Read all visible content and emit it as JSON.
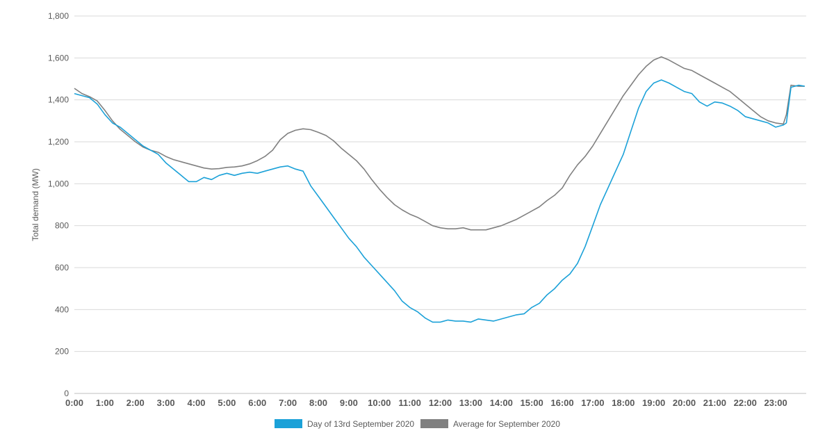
{
  "chart_data": {
    "type": "line",
    "title": "",
    "xlabel": "",
    "ylabel": "Total demand (MW)",
    "ylim": [
      0,
      1800
    ],
    "xlim": [
      0,
      24
    ],
    "yticks": [
      "0",
      "200",
      "400",
      "600",
      "800",
      "1,000",
      "1,200",
      "1,400",
      "1,600",
      "1,800"
    ],
    "yticks_values": [
      0,
      200,
      400,
      600,
      800,
      1000,
      1200,
      1400,
      1600,
      1800
    ],
    "xticks": [
      "0:00",
      "1:00",
      "2:00",
      "3:00",
      "4:00",
      "5:00",
      "6:00",
      "7:00",
      "8:00",
      "9:00",
      "10:00",
      "11:00",
      "12:00",
      "13:00",
      "14:00",
      "15:00",
      "16:00",
      "17:00",
      "18:00",
      "19:00",
      "20:00",
      "21:00",
      "22:00",
      "23:00"
    ],
    "xticks_values": [
      0,
      1,
      2,
      3,
      4,
      5,
      6,
      7,
      8,
      9,
      10,
      11,
      12,
      13,
      14,
      15,
      16,
      17,
      18,
      19,
      20,
      21,
      22,
      23
    ],
    "grid": true,
    "legend_position": "bottom",
    "series": [
      {
        "name": "Day of 13rd September 2020",
        "color": "#1ba1d8",
        "x": [
          0,
          0.25,
          0.5,
          0.75,
          1,
          1.25,
          1.5,
          1.75,
          2,
          2.25,
          2.5,
          2.75,
          3,
          3.25,
          3.5,
          3.75,
          4,
          4.25,
          4.5,
          4.75,
          5,
          5.25,
          5.5,
          5.75,
          6,
          6.25,
          6.5,
          6.75,
          7,
          7.25,
          7.5,
          7.75,
          8,
          8.25,
          8.5,
          8.75,
          9,
          9.25,
          9.5,
          9.75,
          10,
          10.25,
          10.5,
          10.75,
          11,
          11.25,
          11.5,
          11.75,
          12,
          12.25,
          12.5,
          12.75,
          13,
          13.25,
          13.5,
          13.75,
          14,
          14.25,
          14.5,
          14.75,
          15,
          15.25,
          15.5,
          15.75,
          16,
          16.25,
          16.5,
          16.75,
          17,
          17.25,
          17.5,
          17.75,
          18,
          18.25,
          18.5,
          18.75,
          19,
          19.25,
          19.5,
          19.75,
          20,
          20.25,
          20.5,
          20.75,
          21,
          21.25,
          21.5,
          21.75,
          22,
          22.25,
          22.5,
          22.75,
          23,
          23.25,
          23.35,
          23.5,
          23.75,
          23.95
        ],
        "values": [
          1430,
          1420,
          1410,
          1380,
          1330,
          1290,
          1270,
          1240,
          1210,
          1180,
          1160,
          1140,
          1100,
          1070,
          1040,
          1010,
          1010,
          1030,
          1020,
          1040,
          1050,
          1040,
          1050,
          1055,
          1050,
          1060,
          1070,
          1080,
          1085,
          1070,
          1060,
          990,
          940,
          890,
          840,
          790,
          740,
          700,
          650,
          610,
          570,
          530,
          490,
          440,
          410,
          390,
          360,
          340,
          340,
          350,
          345,
          345,
          340,
          355,
          350,
          345,
          355,
          365,
          375,
          380,
          410,
          430,
          470,
          500,
          540,
          570,
          620,
          700,
          800,
          900,
          980,
          1060,
          1140,
          1250,
          1360,
          1440,
          1480,
          1495,
          1480,
          1460,
          1440,
          1430,
          1390,
          1370,
          1390,
          1385,
          1370,
          1350,
          1320,
          1310,
          1300,
          1290,
          1270,
          1280,
          1290,
          1460,
          1470,
          1465
        ]
      },
      {
        "name": "Average for September 2020",
        "color": "#808080",
        "x": [
          0,
          0.25,
          0.5,
          0.75,
          1,
          1.25,
          1.5,
          1.75,
          2,
          2.25,
          2.5,
          2.75,
          3,
          3.25,
          3.5,
          3.75,
          4,
          4.25,
          4.5,
          4.75,
          5,
          5.25,
          5.5,
          5.75,
          6,
          6.25,
          6.5,
          6.75,
          7,
          7.25,
          7.5,
          7.75,
          8,
          8.25,
          8.5,
          8.75,
          9,
          9.25,
          9.5,
          9.75,
          10,
          10.25,
          10.5,
          10.75,
          11,
          11.25,
          11.5,
          11.75,
          12,
          12.25,
          12.5,
          12.75,
          13,
          13.25,
          13.5,
          13.75,
          14,
          14.25,
          14.5,
          14.75,
          15,
          15.25,
          15.5,
          15.75,
          16,
          16.25,
          16.5,
          16.75,
          17,
          17.25,
          17.5,
          17.75,
          18,
          18.25,
          18.5,
          18.75,
          19,
          19.25,
          19.5,
          19.75,
          20,
          20.25,
          20.5,
          20.75,
          21,
          21.25,
          21.5,
          21.75,
          22,
          22.25,
          22.5,
          22.75,
          23,
          23.25,
          23.35,
          23.5,
          23.75,
          23.95
        ],
        "values": [
          1455,
          1430,
          1415,
          1395,
          1350,
          1300,
          1260,
          1230,
          1200,
          1175,
          1160,
          1150,
          1130,
          1115,
          1105,
          1095,
          1085,
          1075,
          1070,
          1072,
          1078,
          1080,
          1085,
          1095,
          1110,
          1130,
          1160,
          1210,
          1240,
          1255,
          1262,
          1258,
          1245,
          1230,
          1205,
          1170,
          1140,
          1110,
          1070,
          1020,
          975,
          935,
          900,
          875,
          855,
          840,
          820,
          800,
          790,
          785,
          785,
          790,
          780,
          780,
          780,
          790,
          800,
          815,
          830,
          850,
          870,
          890,
          920,
          945,
          980,
          1040,
          1090,
          1130,
          1180,
          1240,
          1300,
          1360,
          1420,
          1470,
          1520,
          1560,
          1590,
          1605,
          1590,
          1570,
          1550,
          1540,
          1520,
          1500,
          1480,
          1460,
          1440,
          1410,
          1380,
          1350,
          1320,
          1300,
          1290,
          1285,
          1330,
          1470,
          1465,
          1465
        ]
      }
    ]
  }
}
